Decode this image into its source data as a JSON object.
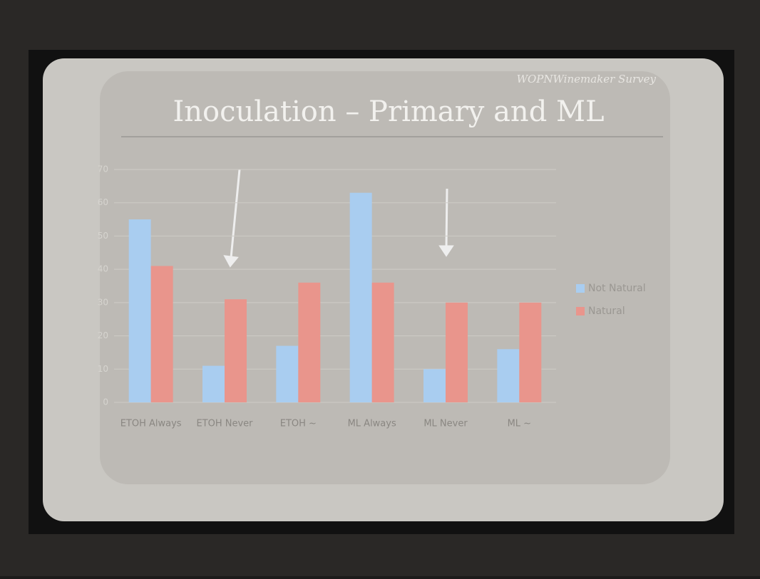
{
  "chart_data": {
    "type": "bar",
    "title": "Inoculation – Primary and ML",
    "subtitle": "WOPNWinemaker Survey",
    "categories": [
      "ETOH Always",
      "ETOH Never",
      "ETOH ~",
      "ML Always",
      "ML Never",
      "ML ~"
    ],
    "series": [
      {
        "name": "Not Natural",
        "color": "#a9cdf0",
        "values": [
          55,
          11,
          17,
          63,
          10,
          16
        ]
      },
      {
        "name": "Natural",
        "color": "#e9958c",
        "values": [
          41,
          31,
          36,
          36,
          30,
          30
        ]
      }
    ],
    "ylim": [
      0,
      70
    ],
    "yticks": [
      0,
      10,
      20,
      30,
      40,
      50,
      60,
      70
    ],
    "grid": true,
    "legend": "right"
  }
}
